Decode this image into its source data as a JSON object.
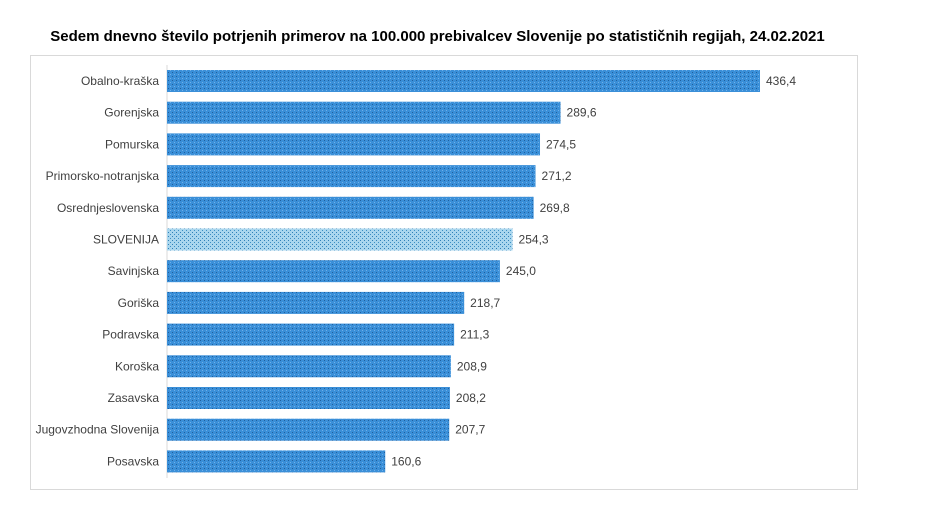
{
  "chart_data": {
    "type": "bar",
    "orientation": "horizontal",
    "title": "Sedem dnevno število potrjenih primerov na 100.000  prebivalcev Slovenije po statističnih regijah, 24.02.2021",
    "categories": [
      "Obalno-kraška",
      "Gorenjska",
      "Pomurska",
      "Primorsko-notranjska",
      "Osrednjeslovenska",
      "SLOVENIJA",
      "Savinjska",
      "Goriška",
      "Podravska",
      "Koroška",
      "Zasavska",
      "Jugovzhodna Slovenija",
      "Posavska"
    ],
    "values": [
      436.4,
      289.6,
      274.5,
      271.2,
      269.8,
      254.3,
      245.0,
      218.7,
      211.3,
      208.9,
      208.2,
      207.7,
      160.6
    ],
    "data_labels": [
      "436,4",
      "289,6",
      "274,5",
      "271,2",
      "269,8",
      "254,3",
      "245,0",
      "218,7",
      "211,3",
      "208,9",
      "208,2",
      "207,7",
      "160,6"
    ],
    "highlight": "SLOVENIJA",
    "colors": {
      "bar": "#3a8fd8",
      "highlight": "#9ed0ea"
    },
    "grid": false,
    "xlim": [
      0,
      436.4
    ]
  }
}
